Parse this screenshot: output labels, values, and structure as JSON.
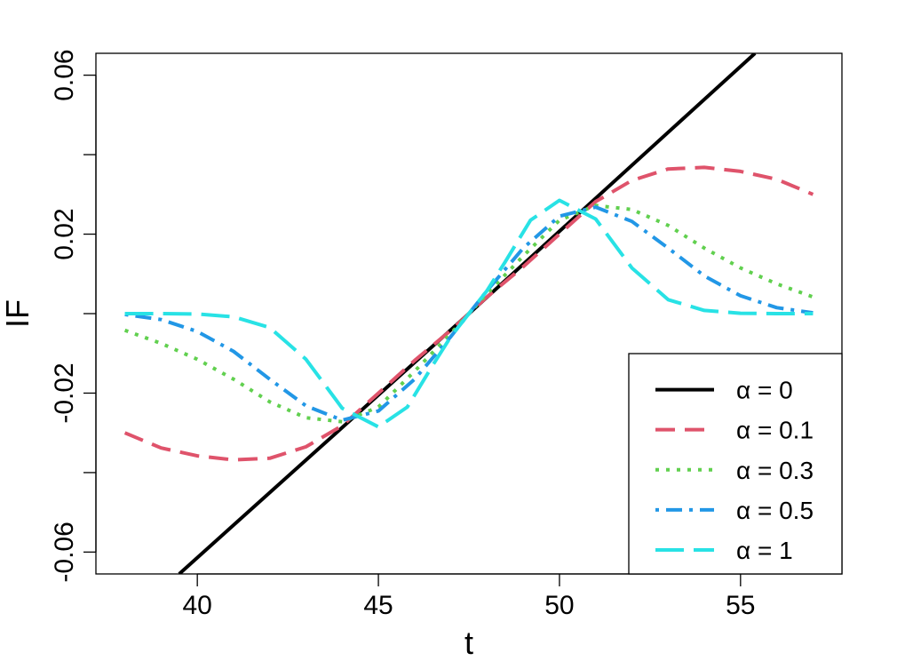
{
  "chart_data": {
    "type": "line",
    "xlabel": "t",
    "ylabel": "IF",
    "xlim": [
      37.2,
      57.8
    ],
    "ylim": [
      -0.0655,
      0.0655
    ],
    "x_ticks": [
      {
        "value": 40,
        "label": "40"
      },
      {
        "value": 45,
        "label": "45"
      },
      {
        "value": 50,
        "label": "50"
      },
      {
        "value": 55,
        "label": "55"
      }
    ],
    "y_ticks": [
      {
        "value": -0.06,
        "label": "-0.06"
      },
      {
        "value": -0.04,
        "label": ""
      },
      {
        "value": -0.02,
        "label": "-0.02"
      },
      {
        "value": 0.0,
        "label": ""
      },
      {
        "value": 0.02,
        "label": "0.02"
      },
      {
        "value": 0.04,
        "label": ""
      },
      {
        "value": 0.06,
        "label": "0.06"
      }
    ],
    "grid": false,
    "legend_position": "bottom-right",
    "series": [
      {
        "name": "α = 0",
        "color": "#000000",
        "dash": "solid",
        "points": [
          [
            39.5,
            -0.0655
          ],
          [
            47.5,
            0.0
          ],
          [
            55.4,
            0.0655
          ]
        ]
      },
      {
        "name": "α = 0.1",
        "color": "#DF536B",
        "dash": "dashed",
        "points": [
          [
            38,
            -0.03
          ],
          [
            39,
            -0.0338
          ],
          [
            40,
            -0.0358
          ],
          [
            41,
            -0.0368
          ],
          [
            42,
            -0.0364
          ],
          [
            43,
            -0.0335
          ],
          [
            44,
            -0.0282
          ],
          [
            45,
            -0.02
          ],
          [
            46,
            -0.0118
          ],
          [
            47,
            -0.0042
          ],
          [
            47.5,
            0.0
          ],
          [
            48,
            0.0042
          ],
          [
            49,
            0.0118
          ],
          [
            50,
            0.02
          ],
          [
            51,
            0.0282
          ],
          [
            52,
            0.0335
          ],
          [
            53,
            0.0364
          ],
          [
            54,
            0.0368
          ],
          [
            55,
            0.0358
          ],
          [
            56,
            0.0338
          ],
          [
            57,
            0.03
          ]
        ]
      },
      {
        "name": "α = 0.3",
        "color": "#61D04F",
        "dash": "dotted",
        "points": [
          [
            38,
            -0.0042
          ],
          [
            39,
            -0.0075
          ],
          [
            40,
            -0.0115
          ],
          [
            41,
            -0.0165
          ],
          [
            42,
            -0.0222
          ],
          [
            43,
            -0.0262
          ],
          [
            44,
            -0.0272
          ],
          [
            45,
            -0.0235
          ],
          [
            46,
            -0.0145
          ],
          [
            47,
            -0.005
          ],
          [
            47.5,
            0.0
          ],
          [
            48,
            0.005
          ],
          [
            49,
            0.0145
          ],
          [
            50,
            0.0235
          ],
          [
            51,
            0.0272
          ],
          [
            52,
            0.0262
          ],
          [
            53,
            0.0222
          ],
          [
            54,
            0.0165
          ],
          [
            55,
            0.0115
          ],
          [
            56,
            0.0075
          ],
          [
            57,
            0.0042
          ]
        ]
      },
      {
        "name": "α = 0.5",
        "color": "#2297E6",
        "dash": "dotdash",
        "points": [
          [
            38,
            -0.0002
          ],
          [
            39,
            -0.0015
          ],
          [
            40,
            -0.0045
          ],
          [
            41,
            -0.0095
          ],
          [
            42,
            -0.0165
          ],
          [
            43,
            -0.0232
          ],
          [
            44,
            -0.0268
          ],
          [
            45,
            -0.0245
          ],
          [
            46,
            -0.0165
          ],
          [
            47,
            -0.0058
          ],
          [
            47.5,
            0.0
          ],
          [
            48,
            0.0058
          ],
          [
            49,
            0.0165
          ],
          [
            50,
            0.0245
          ],
          [
            51,
            0.0268
          ],
          [
            52,
            0.0232
          ],
          [
            53,
            0.0165
          ],
          [
            54,
            0.0095
          ],
          [
            55,
            0.0045
          ],
          [
            56,
            0.0015
          ],
          [
            57,
            0.0002
          ]
        ]
      },
      {
        "name": "α = 1",
        "color": "#28E2E5",
        "dash": "longdash",
        "points": [
          [
            38,
            0.0
          ],
          [
            39,
            0.0
          ],
          [
            40,
            -0.0001
          ],
          [
            41,
            -0.0008
          ],
          [
            42,
            -0.0035
          ],
          [
            43,
            -0.0115
          ],
          [
            44,
            -0.0238
          ],
          [
            45,
            -0.0285
          ],
          [
            45.8,
            -0.0235
          ],
          [
            46.5,
            -0.013
          ],
          [
            47,
            -0.0058
          ],
          [
            47.5,
            0.0
          ],
          [
            48,
            0.0058
          ],
          [
            48.5,
            0.013
          ],
          [
            49.2,
            0.0235
          ],
          [
            50,
            0.0285
          ],
          [
            51,
            0.0238
          ],
          [
            52,
            0.0115
          ],
          [
            53,
            0.0035
          ],
          [
            54,
            0.0008
          ],
          [
            55,
            0.0001
          ],
          [
            56,
            0.0
          ],
          [
            57,
            0.0
          ]
        ]
      }
    ]
  }
}
